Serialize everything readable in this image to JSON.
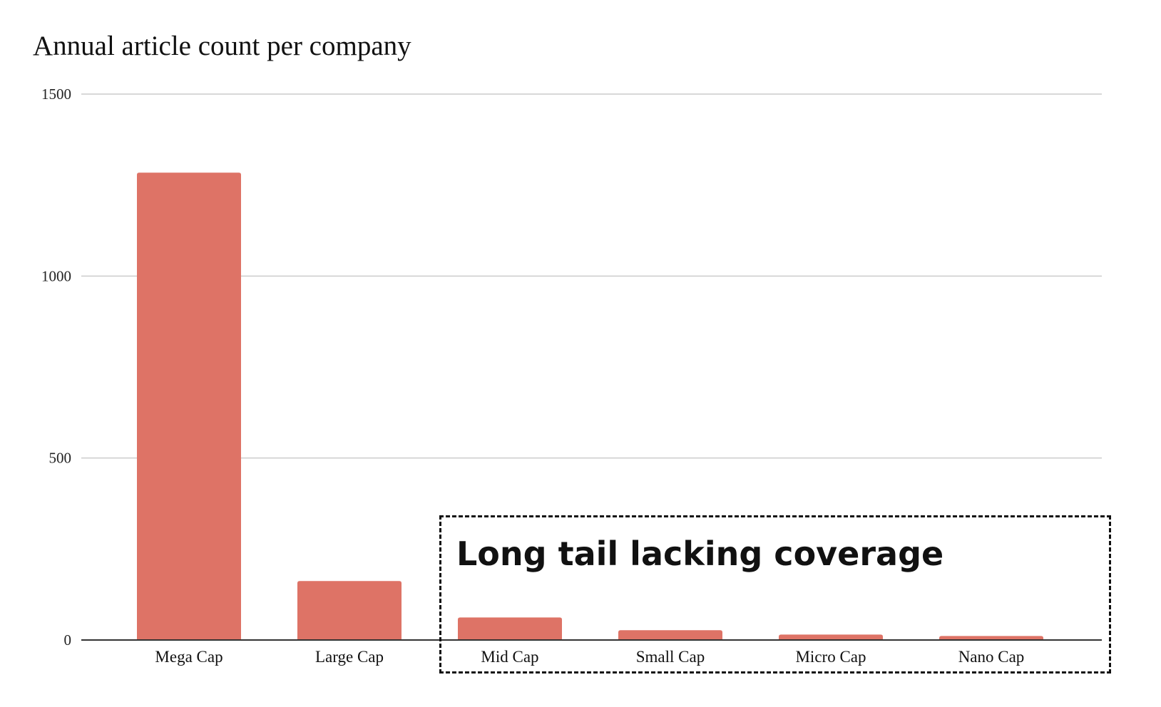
{
  "chart_data": {
    "type": "bar",
    "title": "Annual article count per company",
    "categories": [
      "Mega Cap",
      "Large Cap",
      "Mid Cap",
      "Small Cap",
      "Micro Cap",
      "Nano Cap"
    ],
    "values": [
      1284,
      162,
      62,
      27,
      15,
      11
    ],
    "ylim": [
      0,
      1500
    ],
    "yticks": [
      0,
      500,
      1000,
      1500
    ],
    "grid": true,
    "bar_color": "#de7366",
    "xlabel": "",
    "ylabel": "",
    "annotation": "Long tail lacking coverage"
  }
}
